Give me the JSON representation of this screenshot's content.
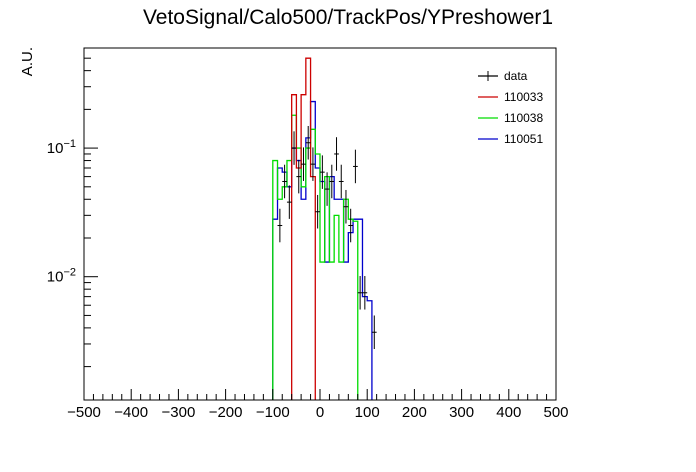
{
  "chart_data": {
    "type": "line",
    "title": "VetoSignal/Calo500/TrackPos/YPreshower1",
    "xlabel": "",
    "ylabel": "A.U.",
    "xlim": [
      -500,
      500
    ],
    "ylim": [
      0.0011,
      0.6
    ],
    "yscale": "log",
    "x_ticks": [
      "−500",
      "−400",
      "−300",
      "−200",
      "−100",
      "0",
      "100",
      "200",
      "300",
      "400",
      "500"
    ],
    "y_tick_labels": [
      {
        "value": 0.1,
        "base": "10",
        "exp": "−1"
      },
      {
        "value": 0.01,
        "base": "10",
        "exp": "−2"
      }
    ],
    "legend_position": "top-right",
    "bin_width": 10,
    "series": [
      {
        "name": "data",
        "color": "#000000",
        "style": "points",
        "points": [
          {
            "x": -85,
            "y": 0.025
          },
          {
            "x": -75,
            "y": 0.055
          },
          {
            "x": -65,
            "y": 0.038
          },
          {
            "x": -55,
            "y": 0.1
          },
          {
            "x": -45,
            "y": 0.06
          },
          {
            "x": -35,
            "y": 0.075
          },
          {
            "x": -25,
            "y": 0.11
          },
          {
            "x": -15,
            "y": 0.075
          },
          {
            "x": -5,
            "y": 0.032
          },
          {
            "x": 5,
            "y": 0.065
          },
          {
            "x": 15,
            "y": 0.048
          },
          {
            "x": 25,
            "y": 0.055
          },
          {
            "x": 35,
            "y": 0.09
          },
          {
            "x": 45,
            "y": 0.055
          },
          {
            "x": 55,
            "y": 0.035
          },
          {
            "x": 65,
            "y": 0.025
          },
          {
            "x": 75,
            "y": 0.072
          },
          {
            "x": 85,
            "y": 0.0075
          },
          {
            "x": 95,
            "y": 0.0075
          },
          {
            "x": 115,
            "y": 0.0037
          }
        ]
      },
      {
        "name": "110033",
        "color": "#cc0000",
        "style": "step",
        "bins": [
          {
            "x0": -60,
            "y": 0.26
          },
          {
            "x0": -50,
            "y": 0.07
          },
          {
            "x0": -40,
            "y": 0.26
          },
          {
            "x0": -30,
            "y": 0.5
          },
          {
            "x0": -20,
            "y": 0.06
          }
        ]
      },
      {
        "name": "110038",
        "color": "#00dd00",
        "style": "step",
        "bins": [
          {
            "x0": -100,
            "y": 0.08
          },
          {
            "x0": -90,
            "y": 0.04
          },
          {
            "x0": -80,
            "y": 0.05
          },
          {
            "x0": -70,
            "y": 0.08
          },
          {
            "x0": -60,
            "y": 0.18
          },
          {
            "x0": -50,
            "y": 0.1
          },
          {
            "x0": -40,
            "y": 0.05
          },
          {
            "x0": -30,
            "y": 0.1
          },
          {
            "x0": -20,
            "y": 0.14
          },
          {
            "x0": -10,
            "y": 0.09
          },
          {
            "x0": 0,
            "y": 0.013
          },
          {
            "x0": 10,
            "y": 0.06
          },
          {
            "x0": 20,
            "y": 0.013
          },
          {
            "x0": 30,
            "y": 0.03
          },
          {
            "x0": 40,
            "y": 0.013
          },
          {
            "x0": 50,
            "y": 0.04
          },
          {
            "x0": 60,
            "y": 0.028
          },
          {
            "x0": 70,
            "y": 0.027
          }
        ]
      },
      {
        "name": "110051",
        "color": "#0000cc",
        "style": "step",
        "bins": [
          {
            "x0": -100,
            "y": 0.028
          },
          {
            "x0": -90,
            "y": 0.07
          },
          {
            "x0": -80,
            "y": 0.065
          },
          {
            "x0": -70,
            "y": 0.05
          },
          {
            "x0": -60,
            "y": 0.1
          },
          {
            "x0": -50,
            "y": 0.08
          },
          {
            "x0": -40,
            "y": 0.04
          },
          {
            "x0": -30,
            "y": 0.12
          },
          {
            "x0": -20,
            "y": 0.23
          },
          {
            "x0": -10,
            "y": 0.07
          },
          {
            "x0": 0,
            "y": 0.055
          },
          {
            "x0": 10,
            "y": 0.013
          },
          {
            "x0": 20,
            "y": 0.06
          },
          {
            "x0": 30,
            "y": 0.04
          },
          {
            "x0": 40,
            "y": 0.04
          },
          {
            "x0": 50,
            "y": 0.013
          },
          {
            "x0": 60,
            "y": 0.022
          },
          {
            "x0": 70,
            "y": 0.028
          },
          {
            "x0": 80,
            "y": 0.028
          },
          {
            "x0": 90,
            "y": 0.007
          },
          {
            "x0": 100,
            "y": 0.0065
          }
        ]
      }
    ]
  }
}
